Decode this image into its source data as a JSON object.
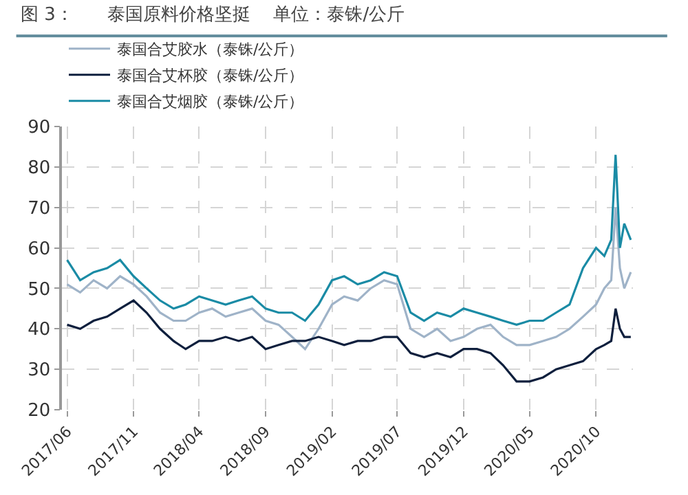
{
  "chart_data": {
    "type": "line",
    "title": "图 3：      泰国原料价格坚挺    单位：泰铢/公斤",
    "x": [
      "2017-06",
      "2017-07",
      "2017-08",
      "2017-09",
      "2017-10",
      "2017-11",
      "2017-12",
      "2018-01",
      "2018-02",
      "2018-03",
      "2018-04",
      "2018-05",
      "2018-06",
      "2018-07",
      "2018-08",
      "2018-09",
      "2018-10",
      "2018-11",
      "2018-12",
      "2019-01",
      "2019-02",
      "2019-03",
      "2019-04",
      "2019-05",
      "2019-06",
      "2019-07",
      "2019-08",
      "2019-09",
      "2019-10",
      "2019-11",
      "2019-12",
      "2020-01",
      "2020-02",
      "2020-03",
      "2020-04",
      "2020-05",
      "2020-06",
      "2020-07",
      "2020-08",
      "2020-09",
      "2020-10",
      "2020-10-20",
      "2020-11-05",
      "2020-11-15",
      "2020-11-25",
      "2020-12-05",
      "2020-12-20"
    ],
    "series": [
      {
        "name": "泰国合艾胶水（泰铢/公斤）",
        "color": "#9fb3c8",
        "values": [
          51,
          49,
          52,
          50,
          53,
          51,
          48,
          44,
          42,
          42,
          44,
          45,
          43,
          44,
          45,
          42,
          41,
          38,
          35,
          40,
          46,
          48,
          47,
          50,
          52,
          51,
          40,
          38,
          40,
          37,
          38,
          40,
          41,
          38,
          36,
          36,
          37,
          38,
          40,
          43,
          46,
          50,
          52,
          70,
          55,
          50,
          54
        ]
      },
      {
        "name": "泰国合艾杯胶（泰铢/公斤）",
        "color": "#0e1f3d",
        "values": [
          41,
          40,
          42,
          43,
          45,
          47,
          44,
          40,
          37,
          35,
          37,
          37,
          38,
          37,
          38,
          35,
          36,
          37,
          37,
          38,
          37,
          36,
          37,
          37,
          38,
          38,
          34,
          33,
          34,
          33,
          35,
          35,
          34,
          31,
          27,
          27,
          28,
          30,
          31,
          32,
          35,
          36,
          37,
          45,
          40,
          38,
          38
        ]
      },
      {
        "name": "泰国合艾烟胶（泰铢/公斤）",
        "color": "#1a8ba5",
        "values": [
          57,
          52,
          54,
          55,
          57,
          53,
          50,
          47,
          45,
          46,
          48,
          47,
          46,
          47,
          48,
          45,
          44,
          44,
          42,
          46,
          52,
          53,
          51,
          52,
          54,
          53,
          44,
          42,
          44,
          43,
          45,
          44,
          43,
          42,
          41,
          42,
          42,
          44,
          46,
          55,
          60,
          58,
          62,
          83,
          60,
          66,
          62
        ]
      }
    ],
    "xlim": [
      "2017-05-20",
      "2020-12-25"
    ],
    "xticks": [
      {
        "value": "2017-06",
        "label": "2017/06"
      },
      {
        "value": "2017-11",
        "label": "2017/11"
      },
      {
        "value": "2018-04",
        "label": "2018/04"
      },
      {
        "value": "2018-09",
        "label": "2018/09"
      },
      {
        "value": "2019-02",
        "label": "2019/02"
      },
      {
        "value": "2019-07",
        "label": "2019/07"
      },
      {
        "value": "2019-12",
        "label": "2019/12"
      },
      {
        "value": "2020-05",
        "label": "2020/05"
      },
      {
        "value": "2020-10",
        "label": "2020/10"
      }
    ],
    "ylim": [
      20,
      90
    ],
    "yticks": [
      20,
      30,
      40,
      50,
      60,
      70,
      80,
      90
    ],
    "grid": true,
    "legend": "top",
    "line_style": "solid",
    "marker": "none"
  }
}
